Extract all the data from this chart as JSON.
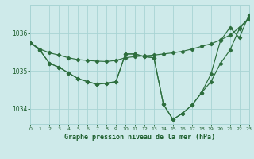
{
  "bg_color": "#ceeaea",
  "grid_color": "#a8d4d4",
  "line_color": "#2d6e3e",
  "text_color": "#1a5c2a",
  "xlabel": "Graphe pression niveau de la mer (hPa)",
  "xlim": [
    0,
    23
  ],
  "ylim": [
    1033.6,
    1036.75
  ],
  "yticks": [
    1034,
    1035,
    1036
  ],
  "xticks": [
    0,
    1,
    2,
    3,
    4,
    5,
    6,
    7,
    8,
    9,
    10,
    11,
    12,
    13,
    14,
    15,
    16,
    17,
    18,
    19,
    20,
    21,
    22,
    23
  ],
  "series1": [
    1035.75,
    1035.58,
    1035.48,
    1035.42,
    1035.35,
    1035.3,
    1035.28,
    1035.26,
    1035.25,
    1035.28,
    1035.35,
    1035.38,
    1035.4,
    1035.42,
    1035.45,
    1035.48,
    1035.52,
    1035.58,
    1035.65,
    1035.72,
    1035.82,
    1035.95,
    1036.15,
    1036.4
  ],
  "series2": [
    1035.75,
    1035.55,
    1035.2,
    1035.1,
    1034.95,
    1034.8,
    1034.72,
    1034.65,
    1034.68,
    1034.72,
    1035.45,
    1035.45,
    1035.38,
    1035.35,
    1034.12,
    1033.72,
    1033.88,
    1034.1,
    1034.42,
    1034.72,
    1035.2,
    1035.55,
    1036.12,
    1036.38
  ],
  "series3": [
    1035.75,
    1035.55,
    1035.2,
    1035.1,
    1034.95,
    1034.8,
    1034.72,
    1034.65,
    1034.68,
    1034.72,
    1035.45,
    1035.45,
    1035.38,
    1035.35,
    1034.12,
    1033.72,
    1033.88,
    1034.1,
    1034.42,
    1034.92,
    1035.8,
    1036.15,
    1035.88,
    1036.48
  ]
}
